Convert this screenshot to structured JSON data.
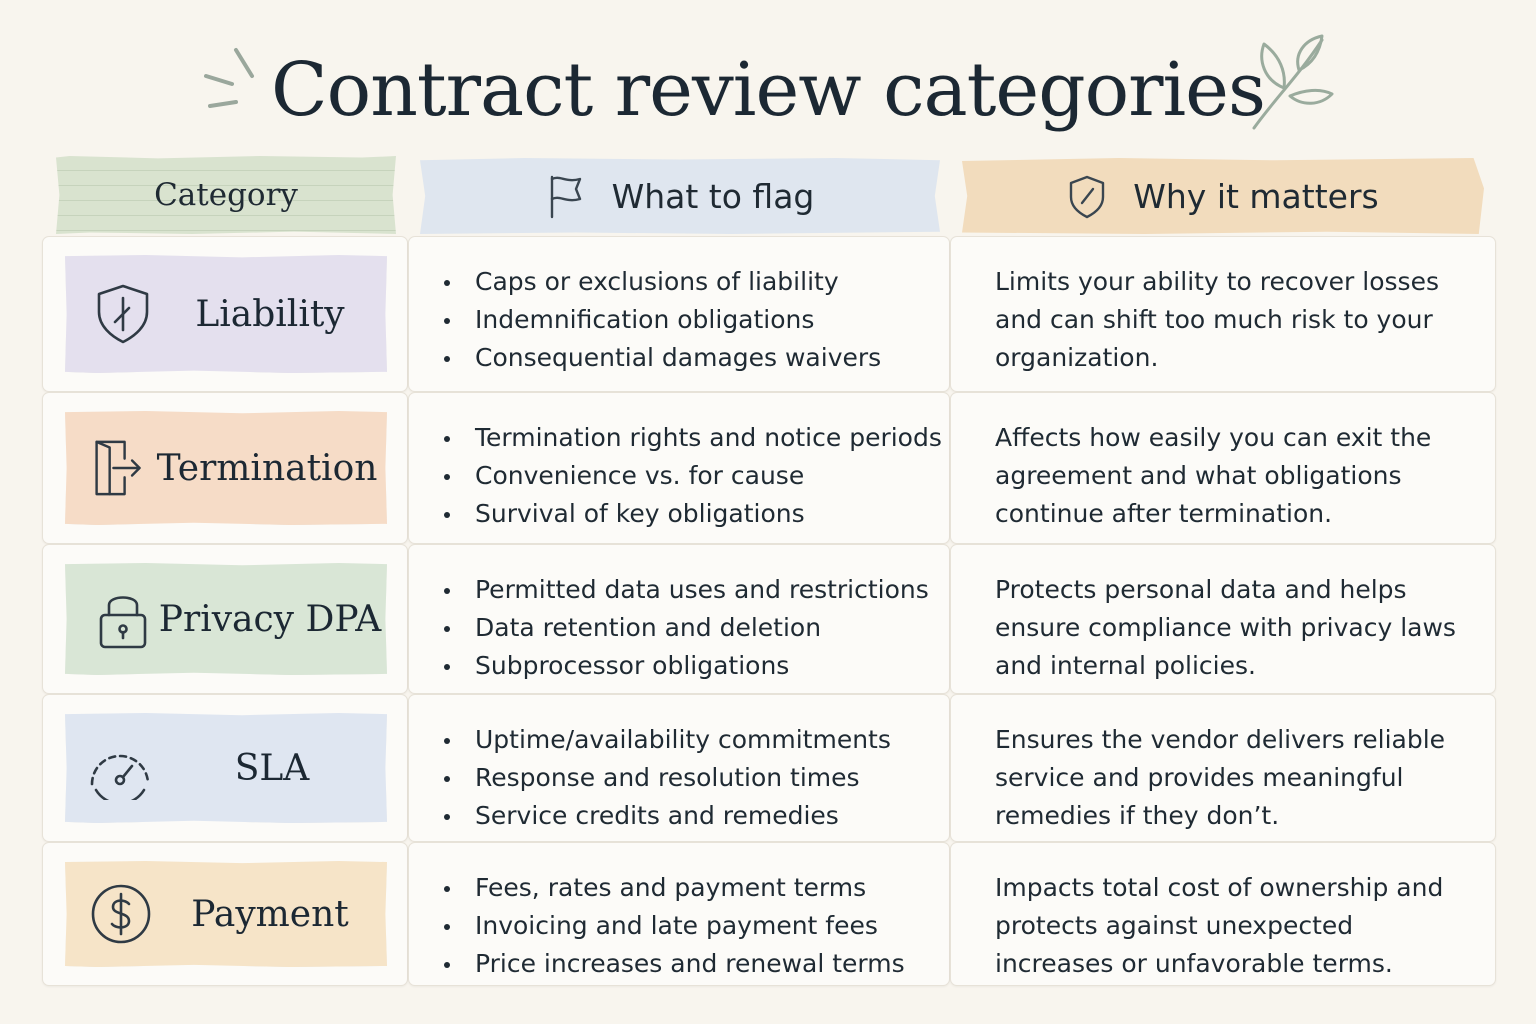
{
  "title": "Contract review categories",
  "headers": {
    "category": "Category",
    "flag": "What to flag",
    "why": "Why it matters"
  },
  "rows": [
    {
      "label": "Liability",
      "icon": "shield-icon",
      "color": "#e4e0ee",
      "flags": [
        "Caps or exclusions of liability",
        "Indemnification obligations",
        "Consequential damages waivers"
      ],
      "why": "Limits your ability to recover losses and can shift too much risk to your organization."
    },
    {
      "label": "Termination",
      "icon": "exit-door-icon",
      "color": "#f6dcc7",
      "flags": [
        "Termination rights and notice periods",
        "Convenience vs. for cause",
        "Survival of key obligations"
      ],
      "why": "Affects how easily you can exit the agreement and what obligations continue after termination."
    },
    {
      "label": "Privacy DPA",
      "icon": "padlock-icon",
      "color": "#d9e6d6",
      "flags": [
        "Permitted data uses and restrictions",
        "Data retention and deletion",
        "Subprocessor obligations"
      ],
      "why": "Protects personal data and helps ensure compliance with privacy laws and internal policies."
    },
    {
      "label": "SLA",
      "icon": "gauge-icon",
      "color": "#dfe6f1",
      "flags": [
        "Uptime/availability commitments",
        "Response and resolution times",
        "Service credits and remedies"
      ],
      "why": "Ensures the vendor delivers reliable service and provides meaningful remedies if they don’t."
    },
    {
      "label": "Payment",
      "icon": "dollar-coin-icon",
      "color": "#f6e4c8",
      "flags": [
        "Fees, rates and payment terms",
        "Invoicing and late payment fees",
        "Price increases and renewal terms"
      ],
      "why": "Impacts total cost of ownership and protects against unexpected increases or unfavorable terms."
    }
  ]
}
